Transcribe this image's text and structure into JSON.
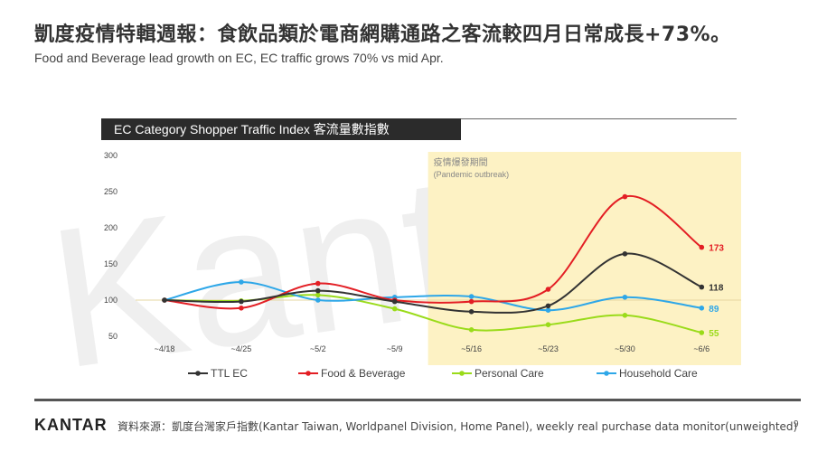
{
  "header": {
    "title": "凱度疫情特輯週報：食飲品類於電商網購通路之客流較四月日常成長+73%。",
    "subtitle": "Food and Beverage lead growth on EC, EC traffic grows 70% vs mid Apr."
  },
  "watermark": {
    "text": "Kantar"
  },
  "chart_data": {
    "type": "line",
    "title": "EC Category Shopper Traffic Index 客流量數指數",
    "categories": [
      "~4/18",
      "~4/25",
      "~5/2",
      "~5/9",
      "~5/16",
      "~5/23",
      "~5/30",
      "~6/6"
    ],
    "ylim": [
      50,
      300
    ],
    "yticks": [
      "300",
      "250",
      "200",
      "150",
      "100",
      "50"
    ],
    "reference_line": 100,
    "highlight": {
      "from_category": "~5/16",
      "label_zh": "疫情爆發期間",
      "label_en": "(Pandemic outbreak)",
      "color": "#fdf2c4"
    },
    "series": [
      {
        "name": "TTL EC",
        "color": "#333333",
        "values": [
          100,
          98,
          113,
          98,
          84,
          92,
          164,
          118
        ],
        "end_label": "118"
      },
      {
        "name": "Food & Beverage",
        "color": "#e31e24",
        "values": [
          100,
          89,
          123,
          100,
          98,
          115,
          243,
          173
        ],
        "end_label": "173"
      },
      {
        "name": "Personal Care",
        "color": "#9adb1a",
        "values": [
          100,
          99,
          107,
          88,
          59,
          66,
          79,
          55
        ],
        "end_label": "55"
      },
      {
        "name": "Household Care",
        "color": "#2ea7e8",
        "values": [
          100,
          125,
          100,
          104,
          105,
          86,
          104,
          89
        ],
        "end_label": "89"
      }
    ]
  },
  "footer": {
    "logo": "KANTAR",
    "source": "資料來源：凱度台灣家戶指數(Kantar Taiwan, Worldpanel Division, Home Panel), weekly real purchase data monitor(unweighted)",
    "page": "9"
  }
}
